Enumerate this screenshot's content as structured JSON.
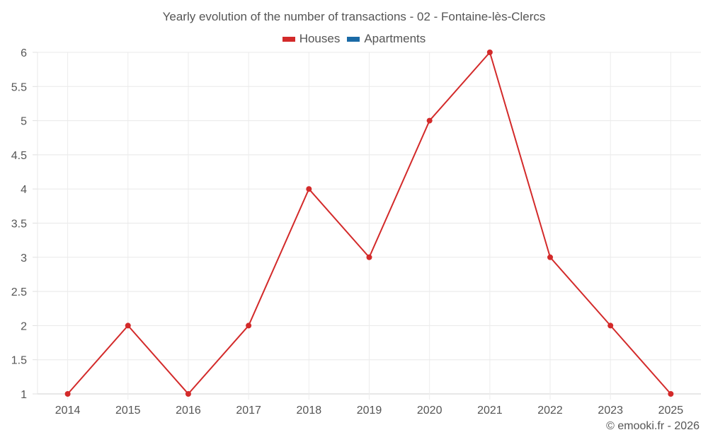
{
  "title": "Yearly evolution of the number of transactions - 02 - Fontaine-lès-Clercs",
  "legend": [
    {
      "label": "Houses",
      "color": "#d32a2a"
    },
    {
      "label": "Apartments",
      "color": "#1a6aa6"
    }
  ],
  "credit": "© emooki.fr - 2026",
  "chart_data": {
    "type": "line",
    "title": "Yearly evolution of the number of transactions - 02 - Fontaine-lès-Clercs",
    "xlabel": "",
    "ylabel": "",
    "categories": [
      "2014",
      "2015",
      "2016",
      "2017",
      "2018",
      "2019",
      "2020",
      "2021",
      "2022",
      "2023",
      "2025"
    ],
    "series": [
      {
        "name": "Houses",
        "color": "#d32a2a",
        "values": [
          1,
          2,
          1,
          2,
          4,
          3,
          5,
          6,
          3,
          2,
          1
        ]
      },
      {
        "name": "Apartments",
        "color": "#1a6aa6",
        "values": []
      }
    ],
    "ylim": [
      1,
      6
    ],
    "yticks": [
      "1",
      "1.5",
      "2",
      "2.5",
      "3",
      "3.5",
      "4",
      "4.5",
      "5",
      "5.5",
      "6"
    ],
    "grid": true,
    "legend_position": "top"
  }
}
